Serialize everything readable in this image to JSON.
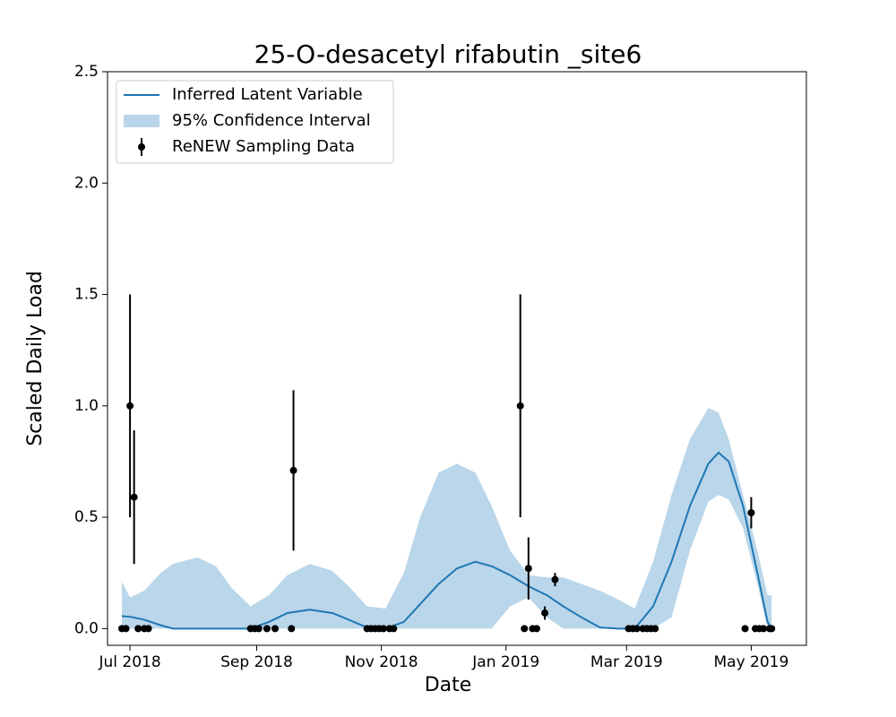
{
  "chart_data": {
    "type": "line",
    "title": "25-O-desacetyl rifabutin _site6",
    "xlabel": "Date",
    "ylabel": "Scaled Daily Load",
    "legend": "upper left",
    "xlim": [
      17702,
      18044
    ],
    "ylim": [
      -0.075,
      2.5
    ],
    "xticks": [
      {
        "value": 17713,
        "label": "Jul 2018"
      },
      {
        "value": 17775,
        "label": "Sep 2018"
      },
      {
        "value": 17836,
        "label": "Nov 2018"
      },
      {
        "value": 17897,
        "label": "Jan 2019"
      },
      {
        "value": 17956,
        "label": "Mar 2019"
      },
      {
        "value": 18017,
        "label": "May 2019"
      }
    ],
    "yticks": [
      {
        "value": 0,
        "label": "0.0"
      },
      0.5,
      {
        "value": 1,
        "label": "1.0"
      },
      1.5,
      {
        "value": 2,
        "label": "2.0"
      },
      2.5
    ],
    "series": [
      {
        "name": "Inferred Latent Variable",
        "type": "line",
        "color": "#1f77b4",
        "x": [
          17709,
          17713,
          17720,
          17728,
          17734,
          17746,
          17755,
          17763,
          17772,
          17781,
          17790,
          17801,
          17812,
          17820,
          17829,
          17838,
          17847,
          17855,
          17864,
          17873,
          17882,
          17890,
          17899,
          17908,
          17917,
          17925,
          17934,
          17943,
          17952,
          17960,
          17969,
          17978,
          17987,
          17996,
          18001,
          18006,
          18013,
          18020,
          18025,
          18027
        ],
        "values": [
          0.056,
          0.053,
          0.04,
          0.015,
          0,
          0,
          0,
          0,
          0,
          0.03,
          0.07,
          0.085,
          0.07,
          0.04,
          0.005,
          0,
          0.03,
          0.11,
          0.2,
          0.27,
          0.3,
          0.28,
          0.24,
          0.19,
          0.15,
          0.1,
          0.05,
          0.005,
          0,
          0,
          0.1,
          0.3,
          0.55,
          0.74,
          0.79,
          0.75,
          0.55,
          0.25,
          0.03,
          0
        ]
      },
      {
        "name": "95% Confidence Interval",
        "type": "band",
        "color": "#bad6ea",
        "x": [
          17709,
          17713,
          17720,
          17728,
          17734,
          17746,
          17755,
          17763,
          17772,
          17781,
          17790,
          17801,
          17812,
          17820,
          17829,
          17838,
          17847,
          17855,
          17864,
          17873,
          17882,
          17890,
          17899,
          17908,
          17917,
          17925,
          17934,
          17943,
          17952,
          17960,
          17969,
          17978,
          17987,
          17996,
          18001,
          18006,
          18013,
          18020,
          18025,
          18027
        ],
        "lower": [
          0,
          0,
          0,
          0,
          0,
          0,
          0,
          0,
          0,
          0,
          0,
          0,
          0,
          0,
          0,
          0,
          0,
          0,
          0,
          0,
          0,
          0,
          0.1,
          0.14,
          0.05,
          0,
          0,
          0,
          0,
          0,
          0,
          0.05,
          0.35,
          0.57,
          0.6,
          0.58,
          0.45,
          0.2,
          0,
          0
        ],
        "upper": [
          0.21,
          0.14,
          0.17,
          0.25,
          0.29,
          0.32,
          0.28,
          0.18,
          0.1,
          0.15,
          0.24,
          0.29,
          0.26,
          0.19,
          0.1,
          0.09,
          0.25,
          0.5,
          0.7,
          0.74,
          0.7,
          0.55,
          0.35,
          0.24,
          0.23,
          0.23,
          0.2,
          0.17,
          0.13,
          0.09,
          0.3,
          0.6,
          0.85,
          0.99,
          0.97,
          0.85,
          0.6,
          0.35,
          0.15,
          0.15
        ]
      },
      {
        "name": "ReNEW Sampling Data",
        "type": "errorbar",
        "color": "#000000",
        "x": [
          17709,
          17711,
          17713,
          17715,
          17717,
          17720,
          17722,
          17772,
          17774,
          17776,
          17780,
          17784,
          17792,
          17793,
          17829,
          17831,
          17833,
          17835,
          17837,
          17840,
          17842,
          17904,
          17906,
          17908,
          17910,
          17912,
          17916,
          17921,
          17957,
          17959,
          17961,
          17964,
          17966,
          17968,
          17970,
          18014,
          18017,
          18019,
          18021,
          18023,
          18026,
          18027
        ],
        "values": [
          0,
          0,
          1,
          0.59,
          0,
          0,
          0,
          0,
          0,
          0,
          0,
          0,
          0,
          0.71,
          0,
          0,
          0,
          0,
          0,
          0,
          0,
          1,
          0,
          0.27,
          0,
          0,
          0.07,
          0.22,
          0,
          0,
          0,
          0,
          0,
          0,
          0,
          0,
          0.52,
          0,
          0,
          0,
          0,
          0
        ],
        "errors": [
          0,
          0,
          0.5,
          0.3,
          0,
          0,
          0,
          0,
          0,
          0,
          0,
          0,
          0,
          0.36,
          0,
          0,
          0,
          0,
          0,
          0,
          0,
          0.5,
          0,
          0.14,
          0,
          0,
          0.03,
          0.03,
          0,
          0,
          0,
          0,
          0,
          0,
          0,
          0,
          0.07,
          0,
          0,
          0,
          0,
          0
        ]
      }
    ]
  }
}
